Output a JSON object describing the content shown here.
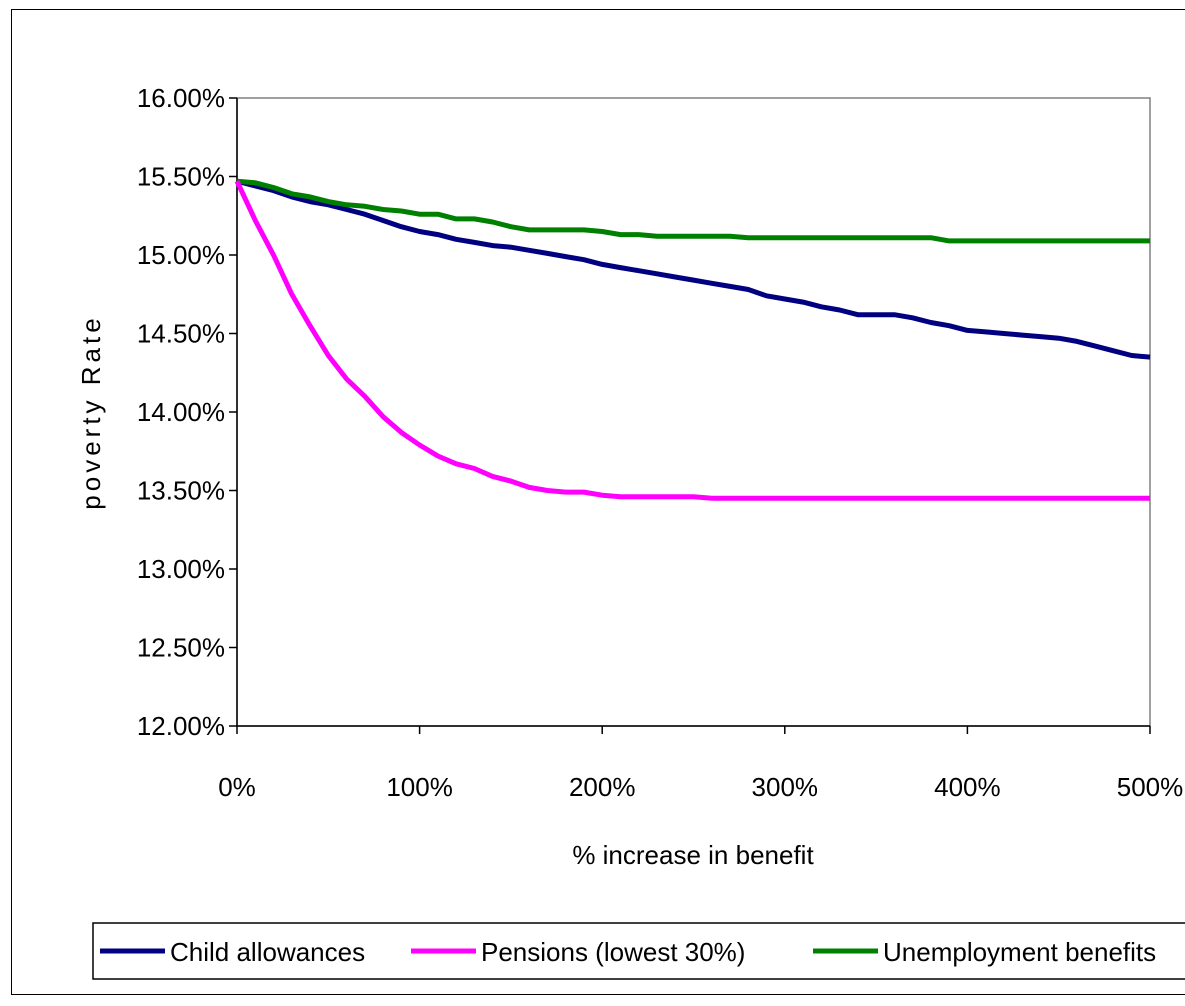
{
  "chart_data": {
    "type": "line",
    "title": "",
    "xlabel": "% increase in benefit",
    "ylabel": "poverty Rate",
    "xlim": [
      0,
      500
    ],
    "ylim": [
      0.12,
      0.16
    ],
    "x_ticks": [
      0,
      100,
      200,
      300,
      400,
      500
    ],
    "x_tick_labels": [
      "0%",
      "100%",
      "200%",
      "300%",
      "400%",
      "500%"
    ],
    "y_ticks": [
      0.12,
      0.125,
      0.13,
      0.135,
      0.14,
      0.145,
      0.15,
      0.155,
      0.16
    ],
    "y_tick_labels": [
      "12.00%",
      "12.50%",
      "13.00%",
      "13.50%",
      "14.00%",
      "14.50%",
      "15.00%",
      "15.50%",
      "16.00%"
    ],
    "grid": false,
    "legend_position": "bottom",
    "x": [
      0,
      10,
      20,
      30,
      40,
      50,
      60,
      70,
      80,
      90,
      100,
      110,
      120,
      130,
      140,
      150,
      160,
      170,
      180,
      190,
      200,
      210,
      220,
      230,
      240,
      250,
      260,
      270,
      280,
      290,
      300,
      310,
      320,
      330,
      340,
      350,
      360,
      370,
      380,
      390,
      400,
      410,
      420,
      430,
      440,
      450,
      460,
      470,
      480,
      490,
      500
    ],
    "series": [
      {
        "name": "Child allowances",
        "color": "#000080",
        "values": [
          0.1547,
          0.1544,
          0.1541,
          0.1537,
          0.1534,
          0.1532,
          0.1529,
          0.1526,
          0.1522,
          0.1518,
          0.1515,
          0.1513,
          0.151,
          0.1508,
          0.1506,
          0.1505,
          0.1503,
          0.1501,
          0.1499,
          0.1497,
          0.1494,
          0.1492,
          0.149,
          0.1488,
          0.1486,
          0.1484,
          0.1482,
          0.148,
          0.1478,
          0.1474,
          0.1472,
          0.147,
          0.1467,
          0.1465,
          0.1462,
          0.1462,
          0.1462,
          0.146,
          0.1457,
          0.1455,
          0.1452,
          0.1451,
          0.145,
          0.1449,
          0.1448,
          0.1447,
          0.1445,
          0.1442,
          0.1439,
          0.1436,
          0.1435
        ]
      },
      {
        "name": "Pensions (lowest 30%)",
        "color": "#ff00ff",
        "values": [
          0.1547,
          0.1522,
          0.15,
          0.1475,
          0.1455,
          0.1436,
          0.1421,
          0.141,
          0.1397,
          0.1387,
          0.1379,
          0.1372,
          0.1367,
          0.1364,
          0.1359,
          0.1356,
          0.1352,
          0.135,
          0.1349,
          0.1349,
          0.1347,
          0.1346,
          0.1346,
          0.1346,
          0.1346,
          0.1346,
          0.1345,
          0.1345,
          0.1345,
          0.1345,
          0.1345,
          0.1345,
          0.1345,
          0.1345,
          0.1345,
          0.1345,
          0.1345,
          0.1345,
          0.1345,
          0.1345,
          0.1345,
          0.1345,
          0.1345,
          0.1345,
          0.1345,
          0.1345,
          0.1345,
          0.1345,
          0.1345,
          0.1345,
          0.1345
        ]
      },
      {
        "name": "Unemployment benefits",
        "color": "#008000",
        "values": [
          0.1547,
          0.1546,
          0.1543,
          0.1539,
          0.1537,
          0.1534,
          0.1532,
          0.1531,
          0.1529,
          0.1528,
          0.1526,
          0.1526,
          0.1523,
          0.1523,
          0.1521,
          0.1518,
          0.1516,
          0.1516,
          0.1516,
          0.1516,
          0.1515,
          0.1513,
          0.1513,
          0.1512,
          0.1512,
          0.1512,
          0.1512,
          0.1512,
          0.1511,
          0.1511,
          0.1511,
          0.1511,
          0.1511,
          0.1511,
          0.1511,
          0.1511,
          0.1511,
          0.1511,
          0.1511,
          0.1509,
          0.1509,
          0.1509,
          0.1509,
          0.1509,
          0.1509,
          0.1509,
          0.1509,
          0.1509,
          0.1509,
          0.1509,
          0.1509
        ]
      }
    ]
  }
}
